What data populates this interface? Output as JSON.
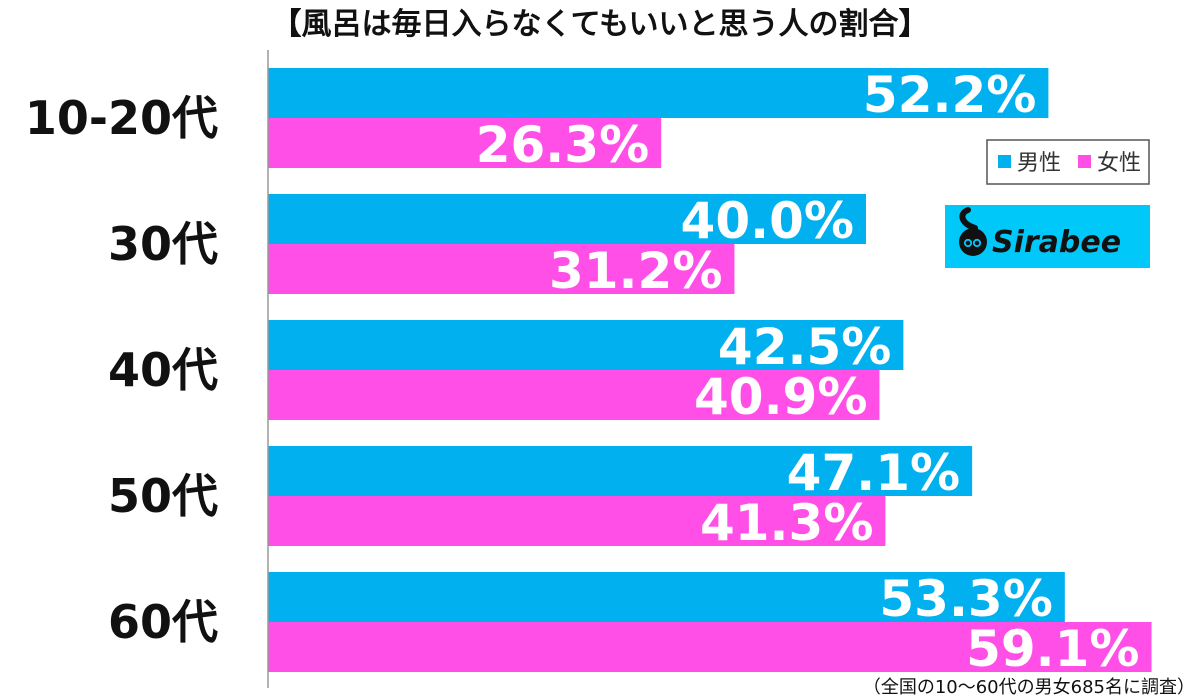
{
  "chart_data": {
    "type": "bar",
    "orientation": "horizontal",
    "title": "【風呂は毎日入らなくてもいいと思う人の割合】",
    "categories": [
      "10-20代",
      "30代",
      "40代",
      "50代",
      "60代"
    ],
    "series": [
      {
        "name": "男性",
        "color": "#00b0ef",
        "values": [
          52.2,
          40.0,
          42.5,
          47.1,
          53.3
        ],
        "labels": [
          "52.2%",
          "40.0%",
          "42.5%",
          "47.1%",
          "53.3%"
        ]
      },
      {
        "name": "女性",
        "color": "#ff4fe6",
        "values": [
          26.3,
          31.2,
          40.9,
          41.3,
          59.1
        ],
        "labels": [
          "26.3%",
          "31.2%",
          "40.9%",
          "41.3%",
          "59.1%"
        ]
      }
    ],
    "xlim": [
      0,
      60
    ],
    "grid": false,
    "legend": "right",
    "note": "（全国の10〜60代の男女685名に調査）"
  },
  "brand": {
    "name": "Sirabee",
    "color": "#00c8f8"
  }
}
